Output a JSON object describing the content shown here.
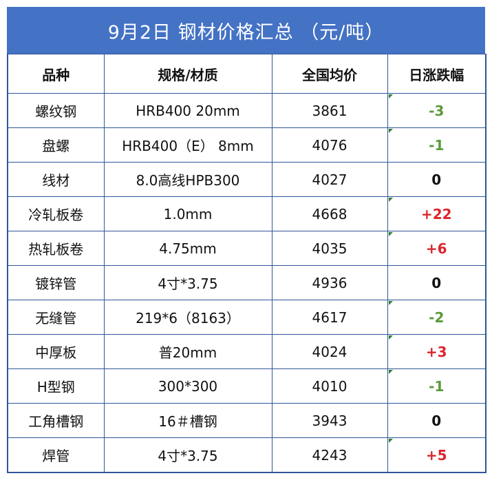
{
  "title": "9月2日 钢材价格汇总 （元/吨）",
  "headers": [
    "品种",
    "规格/材质",
    "全国均价",
    "日涨跌幅"
  ],
  "rows": [
    {
      "name": "螺纹钢",
      "spec": "HRB400 20mm",
      "price": "3861",
      "change": "-3",
      "dir": "down",
      "flag": true
    },
    {
      "name": "盘螺",
      "spec": "HRB400（E） 8mm",
      "price": "4076",
      "change": "-1",
      "dir": "down",
      "flag": true
    },
    {
      "name": "线材",
      "spec": "8.0高线HPB300",
      "price": "4027",
      "change": "0",
      "dir": "flat",
      "flag": false
    },
    {
      "name": "冷轧板卷",
      "spec": "1.0mm",
      "price": "4668",
      "change": "+22",
      "dir": "up",
      "flag": true
    },
    {
      "name": "热轧板卷",
      "spec": "4.75mm",
      "price": "4035",
      "change": "+6",
      "dir": "up",
      "flag": true
    },
    {
      "name": "镀锌管",
      "spec": "4寸*3.75",
      "price": "4936",
      "change": "0",
      "dir": "flat",
      "flag": false
    },
    {
      "name": "无缝管",
      "spec": "219*6（8163）",
      "price": "4617",
      "change": "-2",
      "dir": "down",
      "flag": true
    },
    {
      "name": "中厚板",
      "spec": "普20mm",
      "price": "4024",
      "change": "+3",
      "dir": "up",
      "flag": true
    },
    {
      "name": "H型钢",
      "spec": "300*300",
      "price": "4010",
      "change": "-1",
      "dir": "down",
      "flag": true
    },
    {
      "name": "工角槽钢",
      "spec": "16＃槽钢",
      "price": "3943",
      "change": "0",
      "dir": "flat",
      "flag": false
    },
    {
      "name": "焊管",
      "spec": "4寸*3.75",
      "price": "4243",
      "change": "+5",
      "dir": "up",
      "flag": true
    }
  ],
  "colors": {
    "header_bg": "#4472c4",
    "up": "#d9262c",
    "down": "#5a9a3a",
    "border": "#2f5597"
  }
}
